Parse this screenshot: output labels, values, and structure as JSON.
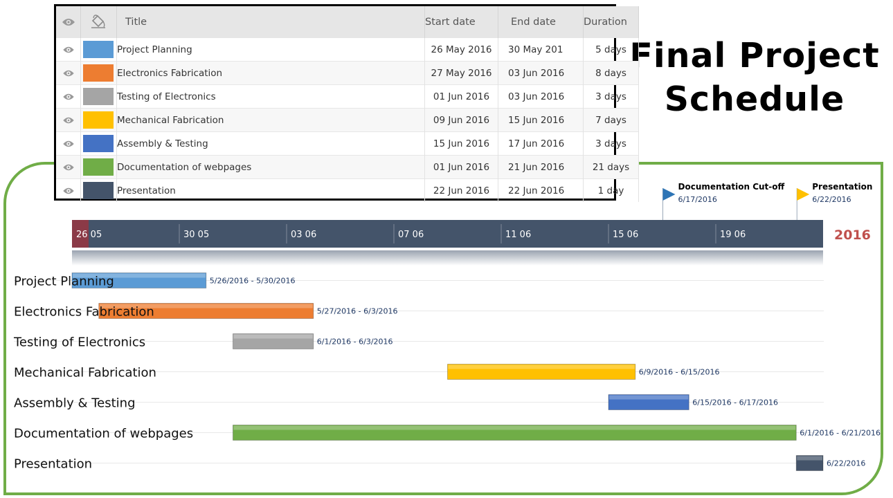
{
  "slide_title": {
    "line1": "Final Project",
    "line2": "Schedule"
  },
  "table": {
    "headers": {
      "visibility_icon": "eye-icon",
      "color_icon": "paint-bucket-icon",
      "title": "Title",
      "start": "Start date",
      "end": "End date",
      "duration": "Duration"
    },
    "rows": [
      {
        "title": "Project Planning",
        "start": "26 May 2016",
        "end": "30 May 201",
        "duration": "5 days",
        "color": "#5b9bd5"
      },
      {
        "title": "Electronics Fabrication",
        "start": "27 May 2016",
        "end": "03 Jun 2016",
        "duration": "8 days",
        "color": "#ed7d31"
      },
      {
        "title": "Testing of Electronics",
        "start": "01 Jun 2016",
        "end": "03 Jun 2016",
        "duration": "3 days",
        "color": "#a5a5a5"
      },
      {
        "title": "Mechanical Fabrication",
        "start": "09 Jun 2016",
        "end": "15 Jun 2016",
        "duration": "7 days",
        "color": "#ffc000"
      },
      {
        "title": "Assembly & Testing",
        "start": "15 Jun 2016",
        "end": "17 Jun 2016",
        "duration": "3 days",
        "color": "#4472c4"
      },
      {
        "title": "Documentation of webpages",
        "start": "01 Jun 2016",
        "end": "21 Jun 2016",
        "duration": "21 days",
        "color": "#70ad47"
      },
      {
        "title": "Presentation",
        "start": "22 Jun 2016",
        "end": "22 Jun 2016",
        "duration": "1 day",
        "color": "#44546a"
      }
    ]
  },
  "chart_data": {
    "type": "gantt",
    "year": "2016",
    "timeline_start": "2016-05-26",
    "timeline_end": "2016-06-22",
    "tick_labels": [
      {
        "date": "2016-05-26",
        "label": "26 05"
      },
      {
        "date": "2016-05-30",
        "label": "30 05"
      },
      {
        "date": "2016-06-03",
        "label": "03 06"
      },
      {
        "date": "2016-06-07",
        "label": "07 06"
      },
      {
        "date": "2016-06-11",
        "label": "11 06"
      },
      {
        "date": "2016-06-15",
        "label": "15 06"
      },
      {
        "date": "2016-06-19",
        "label": "19 06"
      }
    ],
    "tasks": [
      {
        "name": "Project Planning",
        "start": "2016-05-26",
        "end": "2016-05-30",
        "range_label": "5/26/2016 - 5/30/2016",
        "color": "#5b9bd5"
      },
      {
        "name": "Electronics Fabrication",
        "start": "2016-05-27",
        "end": "2016-06-03",
        "range_label": "5/27/2016 - 6/3/2016",
        "color": "#ed7d31"
      },
      {
        "name": "Testing of Electronics",
        "start": "2016-06-01",
        "end": "2016-06-03",
        "range_label": "6/1/2016 - 6/3/2016",
        "color": "#a5a5a5"
      },
      {
        "name": "Mechanical Fabrication",
        "start": "2016-06-09",
        "end": "2016-06-15",
        "range_label": "6/9/2016 - 6/15/2016",
        "color": "#ffc000"
      },
      {
        "name": "Assembly & Testing",
        "start": "2016-06-15",
        "end": "2016-06-17",
        "range_label": "6/15/2016 - 6/17/2016",
        "color": "#4472c4"
      },
      {
        "name": "Documentation of webpages",
        "start": "2016-06-01",
        "end": "2016-06-21",
        "range_label": "6/1/2016 - 6/21/2016",
        "color": "#70ad47"
      },
      {
        "name": "Presentation",
        "start": "2016-06-22",
        "end": "2016-06-22",
        "range_label": "6/22/2016",
        "color": "#44546a"
      }
    ],
    "milestones": [
      {
        "name": "Documentation Cut-off",
        "date": "2016-06-17",
        "date_label": "6/17/2016",
        "color": "#2e75b6"
      },
      {
        "name": "Presentation",
        "date": "2016-06-22",
        "date_label": "6/22/2016",
        "color": "#ffc000"
      }
    ]
  },
  "colors": {
    "frame": "#70ad47",
    "timeline_band": "#44546a",
    "today_marker": "#8b3a47",
    "year": "#c0504d"
  }
}
